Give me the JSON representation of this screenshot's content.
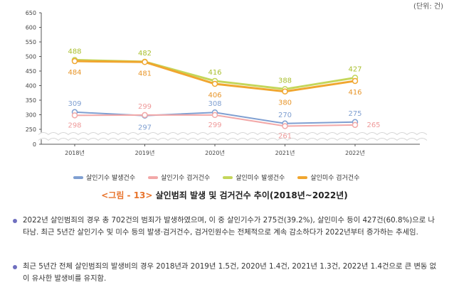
{
  "unit_label": "(단위: 건)",
  "caption": {
    "figure_label": "<그림 - 13>",
    "title": "살인범죄 발생 및 검거건수 추이(2018년~2022년)"
  },
  "paragraphs": [
    "2022년 살인범죄의 경우 총 702건의 범죄가 발생하였으며, 이 중 살인기수가 275건(39.2%), 살인미수 등이 427건(60.8%)으로 나타남. 최근 5년간 살인기수 및 미수 등의 발생·검거건수, 검거인원수는 전체적으로 계속 감소하다가 2022년부터 증가하는 추세임.",
    "최근 5년간 전체 살인범죄의 발생비의 경우 2018년과 2019년 1.5건, 2020년 1.4건, 2021년 1.3건, 2022년 1.4건으로 큰 변동 없이 유사한 발생비를 유지함."
  ],
  "chart_data": {
    "type": "line",
    "categories": [
      "2018년",
      "2019년",
      "2020년",
      "2021년",
      "2022년"
    ],
    "y_ticks": [
      "0",
      "250",
      "300",
      "350",
      "400",
      "450",
      "500",
      "550",
      "600",
      "650"
    ],
    "ylim": [
      0,
      650
    ],
    "axis_break": true,
    "grid": false,
    "legend_position": "bottom",
    "series": [
      {
        "name": "살인기수 발생건수",
        "values": [
          309,
          297,
          308,
          270,
          275
        ],
        "color": "#7f9fd1",
        "label_color": "#7f9fd1"
      },
      {
        "name": "살인기수 검거건수",
        "values": [
          298,
          299,
          299,
          261,
          265
        ],
        "color": "#f2a8a8",
        "label_color": "#ef9a9a"
      },
      {
        "name": "살인미수 발생건수",
        "values": [
          488,
          482,
          416,
          388,
          427
        ],
        "color": "#c4d65a",
        "label_color": "#a9bf2e"
      },
      {
        "name": "살인미수 검거건수",
        "values": [
          484,
          481,
          406,
          380,
          416
        ],
        "color": "#f0a62f",
        "label_color": "#e8962a"
      }
    ]
  }
}
